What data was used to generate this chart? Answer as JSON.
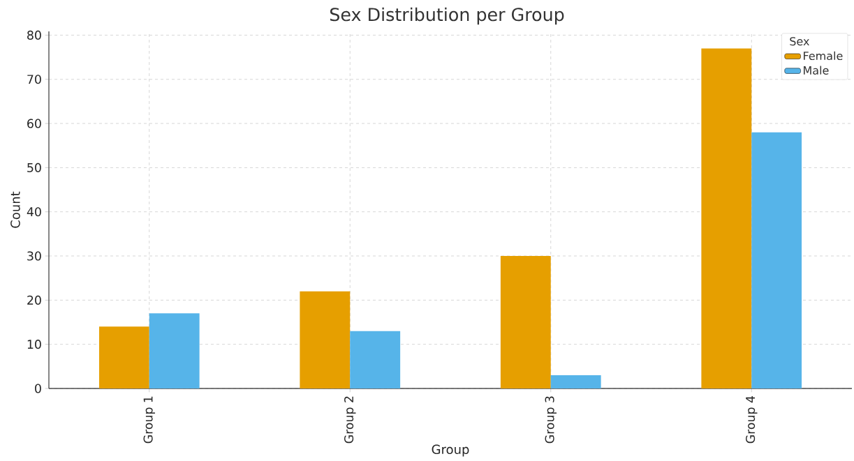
{
  "chart_data": {
    "type": "bar",
    "title": "Sex Distribution per Group",
    "xlabel": "Group",
    "ylabel": "Count",
    "categories": [
      "Group 1",
      "Group 2",
      "Group 3",
      "Group 4"
    ],
    "series": [
      {
        "name": "Female",
        "color": "#e69f00",
        "values": [
          14,
          22,
          30,
          77
        ]
      },
      {
        "name": "Male",
        "color": "#56b4e9",
        "values": [
          17,
          13,
          3,
          58
        ]
      }
    ],
    "ylim": [
      0,
      80.85
    ],
    "yticks": [
      0,
      10,
      20,
      30,
      40,
      50,
      60,
      70,
      80
    ],
    "grid": true,
    "legend": "top right",
    "legend_title": "Sex"
  }
}
